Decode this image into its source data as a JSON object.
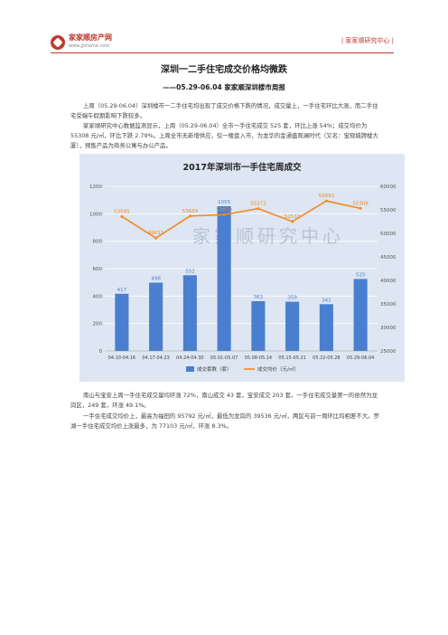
{
  "header": {
    "logo_text": "家家顺房产网",
    "logo_url": "www.jjshome.com",
    "right_text": "| 家家顺研究中心 |"
  },
  "title": "深圳一二手住宅成交价格均微跌",
  "subtitle": "——05.29-06.04 家家顺深圳楼市周报",
  "paragraphs": [
    "上周（05.29-06.04）深圳楼市一二手住宅均出现了成交价格下跌的情况，成交量上，一手住宅环比大涨，而二手住宅受端午假期影响下跌较多。",
    "家家顺研究中心数据监测显示，上周（05.29-06.04）全市一手住宅成交 525 套，环比上涨 54%；成交均价为 55308 元/㎡，环比下跌 2.79%。上周全市无新增供应，仅一楼盘入市，为龙华的金通盛观澜时代（又名：宝观城牌楼大厦），预售产品为商务公寓与办公产品。",
    "南山与宝安上周一手住宅成交量均环涨 72%，南山成交 43 套，宝安成交 203 套。一手住宅成交量第一的依然为龙岗区，249 套，环涨 49.1%。",
    "一手住宅成交均价上，最高为福田的 95792 元/㎡，最低为龙岗的 39536 元/㎡，两区与前一周环比均相差不大。罗湖一手住宅成交均价上涨最多，为 77103 元/㎡，环涨 8.3%。"
  ],
  "chart_data": {
    "type": "bar",
    "title": "2017年深圳市一手住宅周成交",
    "watermark": "家家顺研究中心",
    "categories": [
      "04.10-04.16",
      "04.17-04.23",
      "04.24-04.30",
      "05.01-05.07",
      "05.08-05.14",
      "05.15-05.21",
      "05.22-05.28",
      "05.29-06.04"
    ],
    "series": [
      {
        "name": "成交套数（套）",
        "type": "bar",
        "axis": "left",
        "values": [
          417,
          498,
          552,
          1055,
          363,
          359,
          341,
          525
        ],
        "color": "#4a7fd0"
      },
      {
        "name": "成交均价（元/㎡）",
        "type": "line",
        "axis": "right",
        "values": [
          53585,
          49011,
          53689,
          53970,
          55272,
          52518,
          56893,
          55308
        ],
        "color": "#f08a24"
      }
    ],
    "y_left": {
      "min": 0,
      "max": 1200,
      "ticks": [
        0,
        200,
        400,
        600,
        800,
        1000,
        1200
      ]
    },
    "y_right": {
      "min": 25000,
      "max": 60000,
      "ticks": [
        25000,
        30000,
        35000,
        40000,
        45000,
        50000,
        55000,
        60000
      ]
    },
    "legend": "bottom",
    "grid": true,
    "background": "#dde6f2"
  }
}
